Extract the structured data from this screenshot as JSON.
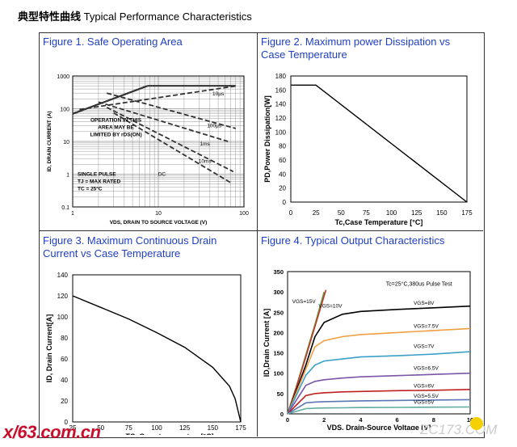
{
  "header": {
    "title_cn": "典型特性曲线",
    "title_en": "Typical Performance Characteristics"
  },
  "figures": {
    "fig1": {
      "title": "Figure 1. Safe Operating Area"
    },
    "fig2": {
      "title_lines": [
        "Figure 2. Maximum power Dissipation vs",
        "Case Temperature"
      ]
    },
    "fig3": {
      "title_lines": [
        "Figure 3. Maximum Continuous Drain",
        "Current vs Case Temperature"
      ]
    },
    "fig4": {
      "title": "Figure 4. Typical Output Characteristics"
    }
  },
  "watermarks": {
    "left": "x/63.com.cn",
    "right": "ZC173.COM"
  },
  "chart_data": [
    {
      "type": "line",
      "scale": "log-log",
      "xlabel": "VDS, DRAIN TO SOURCE VOLTAGE (V)",
      "ylabel": "ID, DRAIN CURRENT (A)",
      "xlim": [
        1,
        100
      ],
      "ylim": [
        0.1,
        1000
      ],
      "x_ticks": [
        "1",
        "10",
        "100"
      ],
      "y_ticks": [
        "1000",
        "100",
        "10",
        "1",
        "0.1"
      ],
      "annotations": [
        "OPERATION IN THIS",
        "AREA MAY BE",
        "LIMITED BY rDS(ON)",
        "SINGLE PULSE",
        "TJ = MAX RATED",
        "TC = 25°C"
      ],
      "series": [
        {
          "name": "rDS(ON) limit",
          "style": "solid",
          "x": [
            1,
            7.5
          ],
          "y": [
            70,
            500
          ]
        },
        {
          "name": "current limit",
          "style": "solid",
          "x": [
            7.5,
            80
          ],
          "y": [
            500,
            500
          ]
        },
        {
          "name": "10µs",
          "style": "dashed",
          "x": [
            1.2,
            80
          ],
          "y": [
            95,
            490
          ]
        },
        {
          "name": "100µs",
          "style": "dashed",
          "x": [
            2.5,
            80
          ],
          "y": [
            300,
            25
          ]
        },
        {
          "name": "1ms",
          "style": "dashed",
          "x": [
            2,
            65
          ],
          "y": [
            160,
            10
          ]
        },
        {
          "name": "10ms",
          "style": "dashed",
          "x": [
            2.5,
            75
          ],
          "y": [
            110,
            1.2
          ]
        },
        {
          "name": "DC",
          "style": "dashed",
          "x": [
            3,
            70
          ],
          "y": [
            75,
            0.55
          ]
        }
      ]
    },
    {
      "type": "line",
      "xlabel": "Tc,Case Temperature [°C]",
      "ylabel": "PD,Power Dissipation[W]",
      "xlim": [
        0,
        175
      ],
      "ylim": [
        0,
        180
      ],
      "x_ticks": [
        0,
        25,
        50,
        75,
        100,
        125,
        150,
        175
      ],
      "y_ticks": [
        0,
        20,
        40,
        60,
        80,
        100,
        120,
        140,
        160,
        180
      ],
      "series": [
        {
          "x": [
            0,
            25,
            175
          ],
          "y": [
            167,
            167,
            0
          ]
        }
      ]
    },
    {
      "type": "line",
      "xlabel": "TC, Case temperature[°C]",
      "ylabel": "ID,  Drain Current[A]",
      "xlim": [
        25,
        175
      ],
      "ylim": [
        0,
        140
      ],
      "x_ticks": [
        25,
        50,
        75,
        100,
        125,
        150,
        175
      ],
      "y_ticks": [
        0,
        20,
        40,
        60,
        80,
        100,
        120,
        140
      ],
      "series": [
        {
          "x": [
            25,
            50,
            75,
            100,
            125,
            150,
            165,
            170,
            175
          ],
          "y": [
            120,
            109,
            98,
            85,
            71,
            52,
            34,
            22,
            0
          ]
        }
      ]
    },
    {
      "type": "line",
      "xlabel": "VDS,  Drain-Source Voltage [V]",
      "ylabel": "ID,Drain Current [A]",
      "xlim": [
        0,
        10
      ],
      "ylim": [
        0,
        350
      ],
      "x_ticks": [
        0,
        2,
        4,
        6,
        8,
        10
      ],
      "y_ticks": [
        0,
        50,
        100,
        150,
        200,
        250,
        300,
        350
      ],
      "annotations": [
        "Tc=25°C,380us Pulse Test"
      ],
      "series": [
        {
          "name": "VGS=15V",
          "color": "#5aa03c",
          "x": [
            0,
            0.5,
            1,
            1.5,
            2
          ],
          "y": [
            0,
            70,
            145,
            220,
            300
          ]
        },
        {
          "name": "VGS=10V",
          "color": "#c0392b",
          "x": [
            0,
            0.5,
            1,
            1.5,
            2.1
          ],
          "y": [
            0,
            68,
            140,
            215,
            305
          ]
        },
        {
          "name": "VGS=8V",
          "color": "#000000",
          "x": [
            0,
            1,
            1.5,
            2,
            3,
            4,
            6,
            8,
            10
          ],
          "y": [
            0,
            120,
            190,
            225,
            245,
            252,
            257,
            261,
            265
          ]
        },
        {
          "name": "VGS=7.5V",
          "color": "#f0a040",
          "x": [
            0,
            1,
            1.5,
            2,
            3,
            4,
            6,
            8,
            10
          ],
          "y": [
            0,
            110,
            165,
            180,
            190,
            195,
            200,
            205,
            210
          ]
        },
        {
          "name": "VGS=7V",
          "color": "#3aa0c8",
          "x": [
            0,
            1,
            1.5,
            2,
            3,
            4,
            6,
            8,
            10
          ],
          "y": [
            0,
            95,
            120,
            130,
            135,
            140,
            143,
            147,
            153
          ]
        },
        {
          "name": "VGS=6.5V",
          "color": "#7b55a8",
          "x": [
            0,
            1,
            1.5,
            2,
            3,
            4,
            6,
            8,
            10
          ],
          "y": [
            0,
            70,
            80,
            84,
            88,
            91,
            94,
            97,
            100
          ]
        },
        {
          "name": "VGS=6V",
          "color": "#c02020",
          "x": [
            0,
            1,
            1.5,
            2,
            3,
            4,
            6,
            8,
            10
          ],
          "y": [
            0,
            45,
            50,
            52,
            54,
            55,
            57,
            58,
            60
          ]
        },
        {
          "name": "VGS=5.5V",
          "color": "#5a78b4",
          "x": [
            0,
            1,
            1.5,
            2,
            3,
            4,
            6,
            8,
            10
          ],
          "y": [
            0,
            27,
            29,
            30,
            31,
            32,
            33,
            34,
            35
          ]
        },
        {
          "name": "VGS=5V",
          "color": "#60aaa0",
          "x": [
            0,
            1,
            1.5,
            2,
            3,
            4,
            6,
            8,
            10
          ],
          "y": [
            0,
            13,
            14,
            14.5,
            15,
            15.5,
            16,
            16.5,
            17
          ]
        }
      ]
    }
  ]
}
